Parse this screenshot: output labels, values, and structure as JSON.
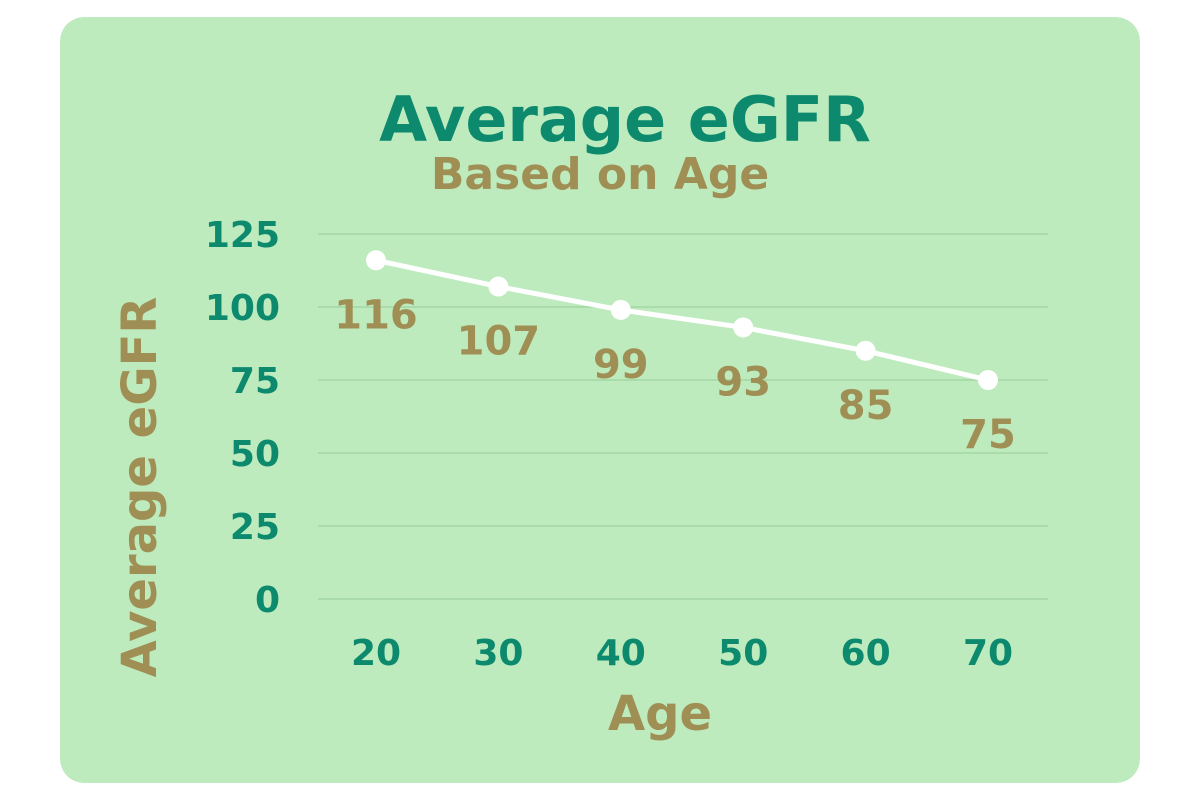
{
  "colors": {
    "card_background": "#bdebbd",
    "primary_green": "#0d8a6e",
    "accent_gold": "#a08f55",
    "line": "#ffffff",
    "gridline": "#a3d6a5"
  },
  "chart_data": {
    "type": "line",
    "title": "Average eGFR",
    "subtitle": "Based on Age",
    "xlabel": "Age",
    "ylabel": "Average eGFR",
    "x": [
      20,
      30,
      40,
      50,
      60,
      70
    ],
    "y_ticks": [
      0,
      25,
      50,
      75,
      100,
      125
    ],
    "ylim": [
      0,
      125
    ],
    "grid": true,
    "series": [
      {
        "values": [
          116,
          107,
          99,
          93,
          85,
          75
        ]
      }
    ]
  }
}
